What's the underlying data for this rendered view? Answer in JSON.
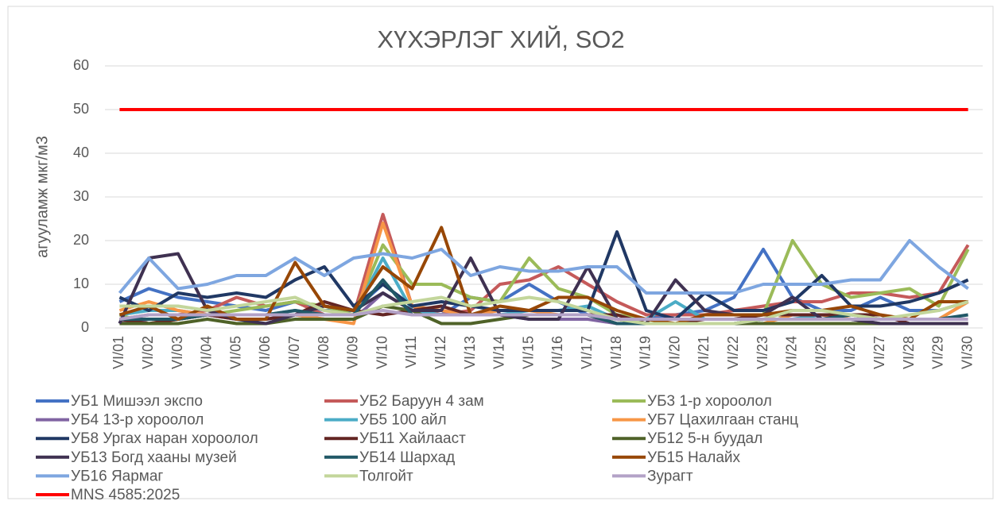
{
  "chart_data": {
    "type": "line",
    "title": "ХҮХЭРЛЭГ ХИЙ, SO2",
    "y_label": "агууламж мкг/м3",
    "ylim": [
      0,
      60
    ],
    "yticks": [
      0,
      10,
      20,
      30,
      40,
      50,
      60
    ],
    "grid": true,
    "legend": "bottom",
    "categories": [
      "VI/01",
      "VI/02",
      "VI/03",
      "VI/04",
      "VI/05",
      "VI/06",
      "VI/07",
      "VI/08",
      "VI/09",
      "VI/10",
      "VI/11",
      "VI/12",
      "VI/13",
      "VI/14",
      "VI/15",
      "VI/16",
      "VI/17",
      "VI/18",
      "VI/19",
      "VI/20",
      "VI/21",
      "VI/22",
      "VI/23",
      "VI/24",
      "VI/25",
      "VI/26",
      "VI/27",
      "VI/28",
      "VI/29",
      "VI/30"
    ],
    "series": [
      {
        "name": "УБ1 Мишээл экспо",
        "color": "#4472c4",
        "values": [
          6,
          9,
          7,
          6,
          5,
          4,
          6,
          4,
          4,
          10,
          5,
          3,
          7,
          6,
          10,
          6,
          3,
          2,
          2,
          3,
          4,
          7,
          18,
          7,
          4,
          4,
          7,
          4,
          4,
          6
        ]
      },
      {
        "name": "УБ2 Баруун 4 зам",
        "color": "#c55a5a",
        "values": [
          2,
          3,
          3,
          4,
          7,
          5,
          6,
          3,
          3,
          26,
          5,
          3,
          4,
          10,
          11,
          14,
          10,
          6,
          3,
          3,
          3,
          4,
          5,
          6,
          6,
          8,
          8,
          7,
          8,
          19
        ]
      },
      {
        "name": "УБ3 1-р хороолол",
        "color": "#9bbb59",
        "values": [
          3,
          1,
          2,
          3,
          4,
          5,
          6,
          5,
          3,
          19,
          10,
          10,
          7,
          6,
          16,
          9,
          7,
          3,
          2,
          2,
          2,
          2,
          3,
          20,
          10,
          7,
          8,
          9,
          5,
          18
        ]
      },
      {
        "name": "УБ4 13-р хороолол",
        "color": "#8064a2",
        "values": [
          1,
          2,
          2,
          3,
          2,
          2,
          3,
          2,
          2,
          8,
          4,
          4,
          3,
          3,
          2,
          2,
          2,
          1,
          1,
          1,
          1,
          1,
          2,
          2,
          2,
          2,
          1,
          1,
          1,
          1
        ]
      },
      {
        "name": "УБ5 100 айл",
        "color": "#4bacc6",
        "values": [
          3,
          4,
          4,
          3,
          3,
          3,
          4,
          3,
          3,
          16,
          4,
          3,
          3,
          3,
          4,
          4,
          5,
          2,
          2,
          6,
          2,
          2,
          2,
          2,
          3,
          2,
          2,
          2,
          2,
          6
        ]
      },
      {
        "name": "УБ7 Цахилгаан станц",
        "color": "#f79646",
        "values": [
          4,
          6,
          4,
          3,
          3,
          3,
          3,
          2,
          1,
          24,
          5,
          4,
          3,
          4,
          4,
          3,
          3,
          2,
          1,
          1,
          1,
          1,
          1,
          3,
          3,
          2,
          2,
          2,
          2,
          6
        ]
      },
      {
        "name": "УБ8 Ургах наран хороолол",
        "color": "#203864",
        "values": [
          7,
          4,
          8,
          7,
          8,
          7,
          11,
          14,
          5,
          10,
          5,
          6,
          5,
          4,
          4,
          4,
          4,
          22,
          4,
          2,
          8,
          4,
          4,
          6,
          12,
          5,
          5,
          6,
          8,
          11
        ]
      },
      {
        "name": "УБ11 Хайлааст",
        "color": "#632523",
        "values": [
          2,
          1,
          2,
          3,
          2,
          2,
          3,
          6,
          4,
          3,
          4,
          5,
          3,
          3,
          3,
          3,
          3,
          3,
          1,
          1,
          2,
          2,
          3,
          3,
          3,
          3,
          3,
          1,
          1,
          1
        ]
      },
      {
        "name": "УБ12 5-н буудал",
        "color": "#4f6228",
        "values": [
          1,
          1,
          1,
          2,
          1,
          1,
          2,
          2,
          2,
          5,
          4,
          1,
          1,
          2,
          3,
          3,
          3,
          1,
          1,
          1,
          1,
          1,
          1,
          1,
          1,
          1,
          1,
          1,
          1,
          1
        ]
      },
      {
        "name": "УБ13 Богд хааны музей",
        "color": "#3f3151",
        "values": [
          1,
          16,
          17,
          4,
          2,
          1,
          3,
          5,
          4,
          8,
          4,
          4,
          16,
          3,
          2,
          2,
          14,
          2,
          1,
          11,
          4,
          3,
          3,
          7,
          2,
          2,
          1,
          1,
          1,
          1
        ]
      },
      {
        "name": "УБ14 Шархад",
        "color": "#215867",
        "values": [
          2,
          2,
          2,
          3,
          3,
          3,
          4,
          3,
          3,
          11,
          3,
          3,
          3,
          3,
          3,
          3,
          3,
          1,
          1,
          1,
          1,
          1,
          2,
          2,
          2,
          3,
          2,
          2,
          2,
          3
        ]
      },
      {
        "name": "УБ15 Налайх",
        "color": "#974706",
        "values": [
          3,
          5,
          2,
          5,
          2,
          2,
          15,
          5,
          4,
          14,
          9,
          23,
          3,
          5,
          4,
          7,
          7,
          4,
          2,
          1,
          3,
          3,
          3,
          4,
          4,
          5,
          3,
          2,
          6,
          6
        ]
      },
      {
        "name": "УБ16 Яармаг",
        "color": "#7ea6e0",
        "values": [
          8,
          16,
          9,
          10,
          12,
          12,
          16,
          12,
          16,
          17,
          16,
          18,
          12,
          14,
          13,
          13,
          14,
          14,
          8,
          8,
          8,
          8,
          10,
          10,
          10,
          11,
          11,
          20,
          14,
          9
        ]
      },
      {
        "name": "Толгойт",
        "color": "#c3d69b",
        "values": [
          5,
          5,
          5,
          4,
          5,
          6,
          7,
          4,
          3,
          5,
          6,
          7,
          5,
          6,
          7,
          6,
          4,
          2,
          1,
          1,
          1,
          1,
          2,
          4,
          4,
          3,
          2,
          3,
          4,
          6
        ]
      },
      {
        "name": "Зурагт",
        "color": "#b3a2c7",
        "values": [
          2,
          3,
          3,
          3,
          3,
          3,
          3,
          3,
          3,
          4,
          3,
          3,
          3,
          3,
          3,
          3,
          3,
          2,
          2,
          2,
          2,
          2,
          2,
          2,
          2,
          2,
          2,
          2,
          2,
          2
        ]
      },
      {
        "name": "MNS 4585:2025",
        "color": "#ff0000",
        "values": [
          50,
          50,
          50,
          50,
          50,
          50,
          50,
          50,
          50,
          50,
          50,
          50,
          50,
          50,
          50,
          50,
          50,
          50,
          50,
          50,
          50,
          50,
          50,
          50,
          50,
          50,
          50,
          50,
          50,
          50
        ]
      }
    ]
  }
}
